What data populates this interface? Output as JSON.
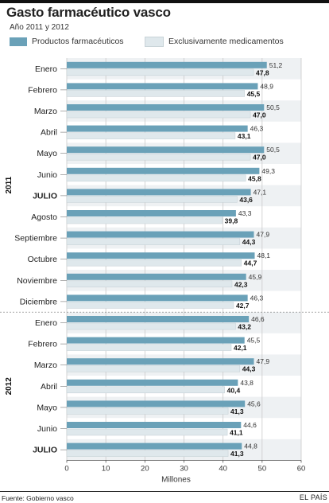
{
  "header": {
    "title": "Gasto farmacéutico vasco",
    "subtitle": "Año 2011 y 2012"
  },
  "legend": {
    "productos": "Productos farmacéuticos",
    "medicamentos": "Exclusivamente medicamentos"
  },
  "footer": {
    "source": "Fuente: Gobierno vasco",
    "brand": "EL PAÍS"
  },
  "colors": {
    "productos": "#6aa1b8",
    "medicamentos": "#dfe8ec",
    "band": "#eef1f3",
    "grid": "#c9c9c9",
    "axis": "#555555"
  },
  "chart_data": {
    "type": "bar",
    "orientation": "horizontal",
    "xlabel": "Millones",
    "xlim": [
      0,
      60
    ],
    "xticks": [
      0,
      10,
      20,
      30,
      40,
      50,
      60
    ],
    "grid": true,
    "legend_position": "top",
    "groups": [
      {
        "name": "2011",
        "categories": [
          "Enero",
          "Febrero",
          "Marzo",
          "Abril",
          "Mayo",
          "Junio",
          "JULIO",
          "Agosto",
          "Septiembre",
          "Octubre",
          "Noviembre",
          "Diciembre"
        ],
        "bold": [
          false,
          false,
          false,
          false,
          false,
          false,
          true,
          false,
          false,
          false,
          false,
          false
        ]
      },
      {
        "name": "2012",
        "categories": [
          "Enero",
          "Febrero",
          "Marzo",
          "Abril",
          "Mayo",
          "Junio",
          "JULIO"
        ],
        "bold": [
          false,
          false,
          false,
          false,
          false,
          false,
          true
        ]
      }
    ],
    "series": [
      {
        "name": "Productos farmacéuticos",
        "values": [
          51.2,
          48.9,
          50.5,
          46.3,
          50.5,
          49.3,
          47.1,
          43.3,
          47.9,
          48.1,
          45.9,
          46.3,
          46.6,
          45.5,
          47.9,
          43.8,
          45.6,
          44.6,
          44.8
        ],
        "labels": [
          "51,2",
          "48,9",
          "50,5",
          "46,3",
          "50,5",
          "49,3",
          "47,1",
          "43,3",
          "47,9",
          "48,1",
          "45,9",
          "46,3",
          "46,6",
          "45,5",
          "47,9",
          "43,8",
          "45,6",
          "44,6",
          "44,8"
        ]
      },
      {
        "name": "Exclusivamente medicamentos",
        "values": [
          47.8,
          45.5,
          47.0,
          43.1,
          47.0,
          45.8,
          43.6,
          39.8,
          44.3,
          44.7,
          42.3,
          42.7,
          43.2,
          42.1,
          44.3,
          40.4,
          41.3,
          41.1,
          41.3
        ],
        "labels": [
          "47,8",
          "45,5",
          "47,0",
          "43,1",
          "47,0",
          "45,8",
          "43,6",
          "39,8",
          "44,3",
          "44,7",
          "42,3",
          "42,7",
          "43,2",
          "42,1",
          "44,3",
          "40,4",
          "41,3",
          "41,1",
          "41,3"
        ]
      }
    ]
  }
}
